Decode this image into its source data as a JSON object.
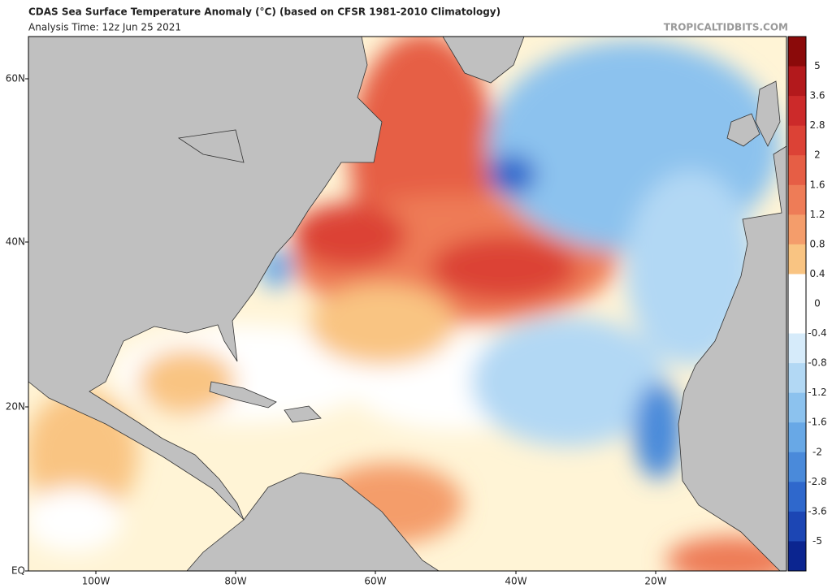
{
  "header": {
    "title": "CDAS Sea Surface Temperature Anomaly (°C) (based on CFSR 1981-2010 Climatology)",
    "subtitle": "Analysis Time: 12z Jun 25 2021",
    "watermark": "TROPICALTIDBITS.COM"
  },
  "map": {
    "lat_labels": [
      "60N",
      "40N",
      "20N",
      "EQ"
    ],
    "lon_labels": [
      "100W",
      "80W",
      "60W",
      "40W",
      "20W"
    ]
  },
  "colorbar": {
    "ticks": [
      5,
      3.6,
      2.8,
      2,
      1.6,
      1.2,
      0.8,
      0.4,
      0,
      -0.4,
      -0.8,
      -1.2,
      -1.6,
      -2,
      -2.8,
      -3.6,
      -5
    ],
    "colors": [
      "#8b0a0a",
      "#b3191c",
      "#cc2a2a",
      "#dc4236",
      "#e65e45",
      "#ee7c57",
      "#f49d6b",
      "#f9c482",
      "#ffffff",
      "#ffffff",
      "#d6ebfa",
      "#b2d8f4",
      "#8cc2ee",
      "#68a8e6",
      "#4a8ada",
      "#2f68cc",
      "#1c46b4",
      "#0b2590"
    ]
  }
}
